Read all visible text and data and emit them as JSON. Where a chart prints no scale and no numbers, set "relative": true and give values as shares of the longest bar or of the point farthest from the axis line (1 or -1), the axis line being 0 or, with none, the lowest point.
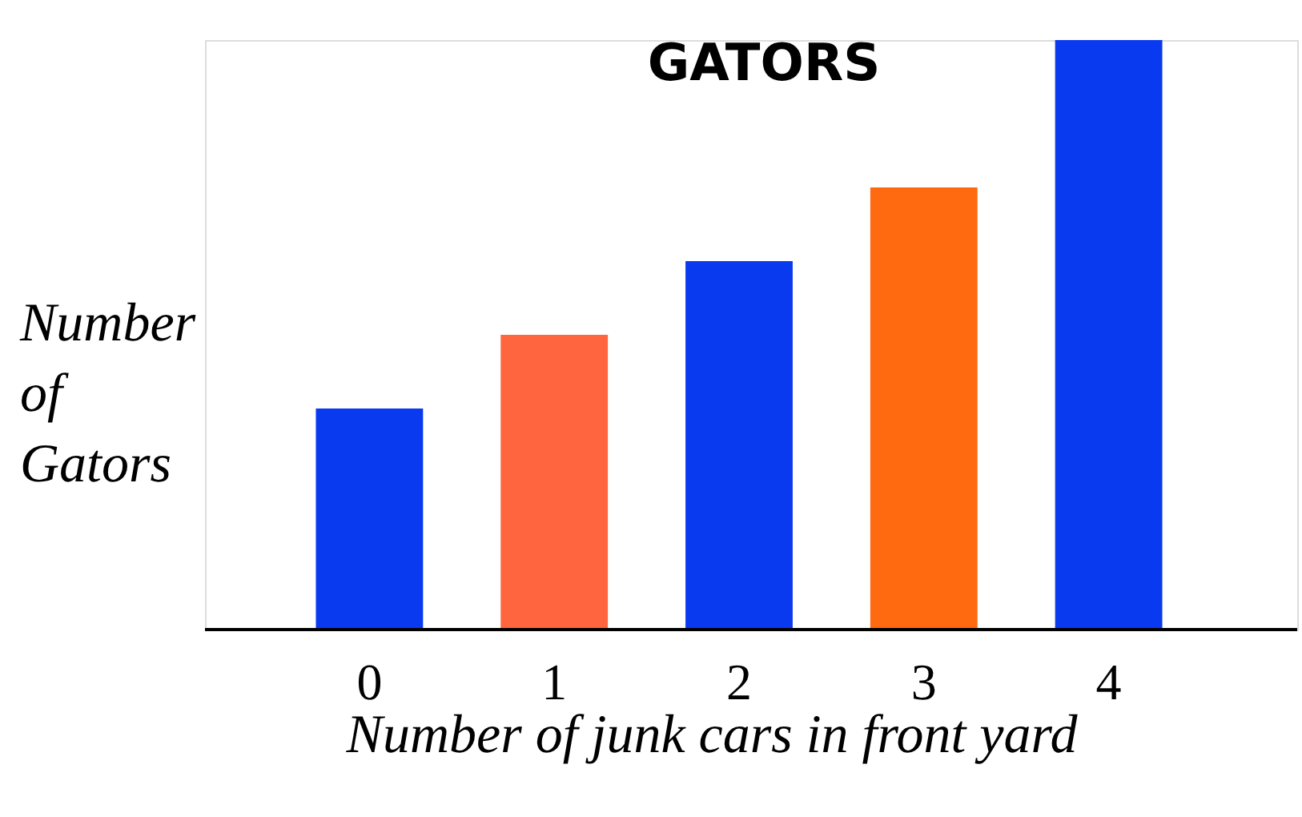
{
  "chart_data": {
    "type": "bar",
    "title": "GATORS",
    "xlabel": "Number of junk cars in front yard",
    "ylabel": "Number of Gators",
    "relative": true,
    "categories": [
      "0",
      "1",
      "2",
      "3",
      "4"
    ],
    "values": [
      0.375,
      0.5,
      0.625,
      0.75,
      1
    ],
    "colors": [
      "#0a3af0",
      "#ff6640",
      "#0a3af0",
      "#ff6a10",
      "#0a3af0"
    ],
    "grid": false,
    "legend": false
  }
}
